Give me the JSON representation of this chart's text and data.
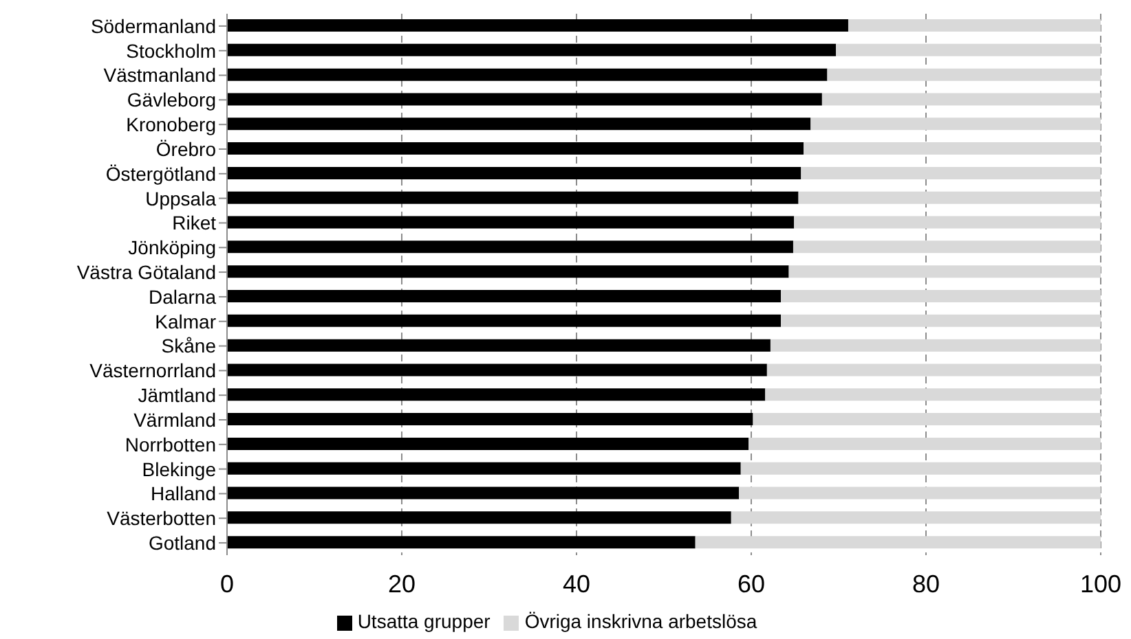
{
  "chart_data": {
    "type": "bar",
    "orientation": "horizontal",
    "stacked": true,
    "categories": [
      "Södermanland",
      "Stockholm",
      "Västmanland",
      "Gävleborg",
      "Kronoberg",
      "Örebro",
      "Östergötland",
      "Uppsala",
      "Riket",
      "Jönköping",
      "Västra Götaland",
      "Dalarna",
      "Kalmar",
      "Skåne",
      "Västernorrland",
      "Jämtland",
      "Värmland",
      "Norrbotten",
      "Blekinge",
      "Halland",
      "Västerbotten",
      "Gotland"
    ],
    "series": [
      {
        "name": "Utsatta grupper",
        "color": "#000000",
        "values": [
          71.1,
          69.7,
          68.7,
          68.1,
          66.8,
          66.0,
          65.7,
          65.4,
          64.9,
          64.8,
          64.3,
          63.4,
          63.4,
          62.2,
          61.8,
          61.6,
          60.2,
          59.7,
          58.8,
          58.6,
          57.7,
          53.6
        ]
      },
      {
        "name": "Övriga inskrivna arbetslösa",
        "color": "#d9d9d9",
        "values": [
          28.9,
          30.3,
          31.3,
          31.9,
          33.2,
          34.0,
          34.3,
          34.6,
          35.1,
          35.2,
          35.7,
          36.6,
          36.6,
          37.8,
          38.2,
          38.4,
          39.8,
          40.3,
          41.2,
          41.4,
          42.3,
          46.4
        ]
      }
    ],
    "xlim": [
      0,
      100
    ],
    "xticks": [
      0,
      20,
      40,
      60,
      80,
      100
    ],
    "grid": "x",
    "legend": "bottom"
  }
}
